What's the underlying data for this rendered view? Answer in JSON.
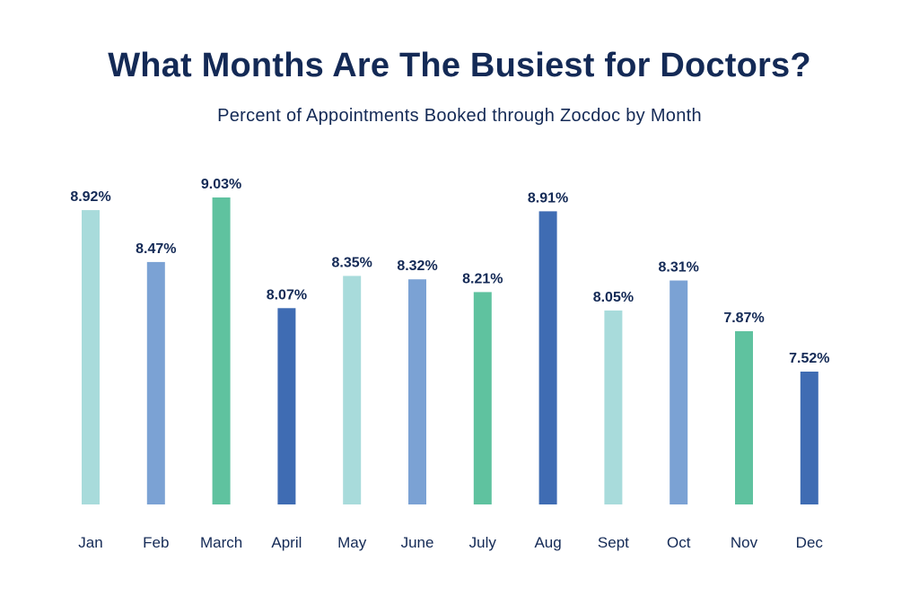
{
  "chart_data": {
    "type": "bar",
    "title": "What Months Are The Busiest for Doctors?",
    "subtitle": "Percent of Appointments Booked through Zocdoc by Month",
    "xlabel": "",
    "ylabel": "",
    "categories": [
      "Jan",
      "Feb",
      "March",
      "April",
      "May",
      "June",
      "July",
      "Aug",
      "Sept",
      "Oct",
      "Nov",
      "Dec"
    ],
    "values": [
      8.92,
      8.47,
      9.03,
      8.07,
      8.35,
      8.32,
      8.21,
      8.91,
      8.05,
      8.31,
      7.87,
      7.52
    ],
    "value_labels": [
      "8.92%",
      "8.47%",
      "9.03%",
      "8.07%",
      "8.35%",
      "8.32%",
      "8.21%",
      "8.91%",
      "8.05%",
      "8.31%",
      "7.87%",
      "7.52%"
    ],
    "bar_colors": [
      "#a8dbdb",
      "#7ba2d4",
      "#5fc29f",
      "#3f6cb3",
      "#a8dbdb",
      "#7ba2d4",
      "#5fc29f",
      "#3f6cb3",
      "#a8dbdb",
      "#7ba2d4",
      "#5fc29f",
      "#3f6cb3"
    ],
    "ylim": [
      0,
      9.03
    ],
    "grid": false,
    "legend": "none"
  },
  "colors": {
    "text": "#142a56",
    "background": "#ffffff"
  }
}
